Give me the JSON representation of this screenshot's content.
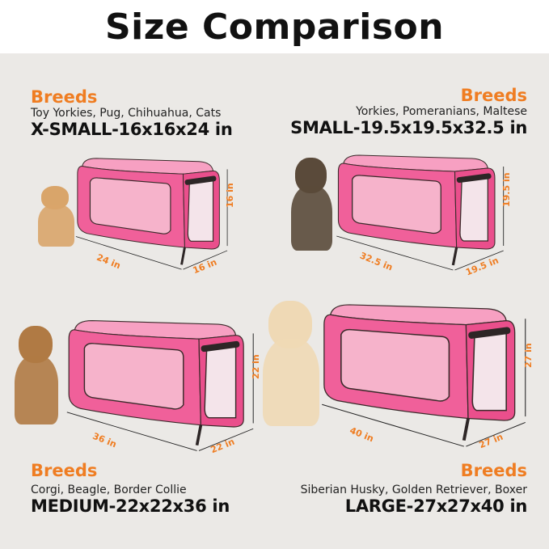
{
  "title": "Size Comparison",
  "colors": {
    "accent": "#ef7d22",
    "crate": "#f0609a",
    "background": "#ebe9e6"
  },
  "sizes": [
    {
      "heading": "Breeds",
      "breeds": "Toy Yorkies, Pug, Chihuahua, Cats",
      "label": "X-SMALL-16x16x24 in",
      "height": "16 in",
      "length": "24 in",
      "width": "16 in",
      "pet": "kitten"
    },
    {
      "heading": "Breeds",
      "breeds": "Yorkies, Pomeranians, Maltese",
      "label": "SMALL-19.5x19.5x32.5 in",
      "height": "19.5 in",
      "length": "32.5 in",
      "width": "19.5 in",
      "pet": "yorkshire-terrier"
    },
    {
      "heading": "Breeds",
      "breeds": "Corgi, Beagle, Border Collie",
      "label": "MEDIUM-22x22x36 in",
      "height": "22 in",
      "length": "36 in",
      "width": "22 in",
      "pet": "beagle"
    },
    {
      "heading": "Breeds",
      "breeds": "Siberian Husky, Golden Retriever, Boxer",
      "label": "LARGE-27x27x40 in",
      "height": "27 in",
      "length": "40 in",
      "width": "27 in",
      "pet": "golden-retriever"
    }
  ]
}
